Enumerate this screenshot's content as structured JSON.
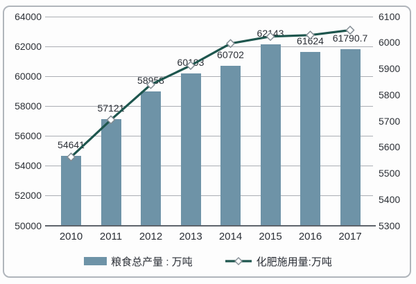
{
  "legend": {
    "bar_label": "粮食总产量 : 万吨",
    "line_label": "化肥施用量:万吨"
  },
  "chart_data": {
    "type": "bar+line",
    "categories": [
      "2010",
      "2011",
      "2012",
      "2013",
      "2014",
      "2015",
      "2016",
      "2017"
    ],
    "series": [
      {
        "name": "粮食总产量 : 万吨",
        "type": "bar",
        "axis": "left",
        "values": [
          54641,
          57121,
          58958,
          60193,
          60702,
          62143,
          61624,
          61790.7
        ],
        "labels": [
          "54641",
          "57121",
          "58958",
          "60193",
          "60702",
          "62143",
          "61624",
          "61790.7"
        ]
      },
      {
        "name": "化肥施用量:万吨",
        "type": "line",
        "axis": "right",
        "values": [
          5561.7,
          5704.2,
          5838.8,
          5911.9,
          5995.9,
          6022.6,
          6028,
          6047
        ]
      }
    ],
    "left_axis": {
      "min": 50000,
      "max": 64000,
      "step": 2000,
      "ticks": [
        "64000",
        "62000",
        "60000",
        "58000",
        "56000",
        "54000",
        "52000",
        "50000"
      ]
    },
    "right_axis": {
      "min": 5300,
      "max": 6100,
      "step": 100,
      "ticks": [
        "6100",
        "6000",
        "5900",
        "5800",
        "5700",
        "5600",
        "5500",
        "5400",
        "5300"
      ]
    },
    "grid": "horizontal-only",
    "legend_position": "bottom-center",
    "colors": {
      "bar": "#6e93a7",
      "line": "#1e564e",
      "marker_fill": "#ffffff",
      "marker_stroke": "#848d94",
      "gridline": "#abaeb4",
      "axis_line": "#5e646b",
      "text": "#2b2f36"
    }
  }
}
